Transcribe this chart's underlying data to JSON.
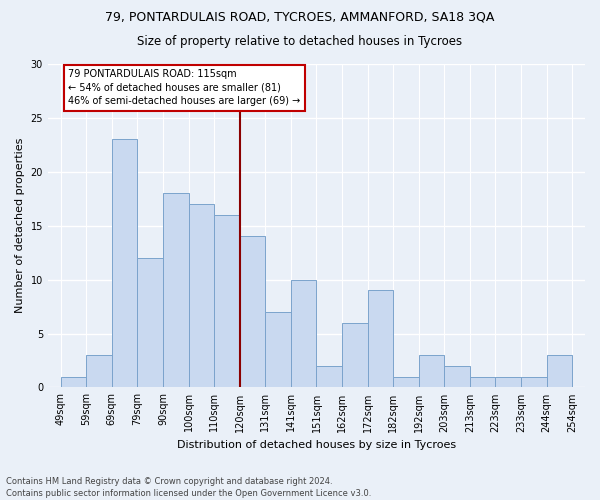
{
  "title1": "79, PONTARDULAIS ROAD, TYCROES, AMMANFORD, SA18 3QA",
  "title2": "Size of property relative to detached houses in Tycroes",
  "xlabel": "Distribution of detached houses by size in Tycroes",
  "ylabel": "Number of detached properties",
  "footnote": "Contains HM Land Registry data © Crown copyright and database right 2024.\nContains public sector information licensed under the Open Government Licence v3.0.",
  "bar_labels": [
    "49sqm",
    "59sqm",
    "69sqm",
    "79sqm",
    "90sqm",
    "100sqm",
    "110sqm",
    "120sqm",
    "131sqm",
    "141sqm",
    "151sqm",
    "162sqm",
    "172sqm",
    "182sqm",
    "192sqm",
    "203sqm",
    "213sqm",
    "223sqm",
    "233sqm",
    "244sqm",
    "254sqm"
  ],
  "bar_values": [
    1,
    3,
    23,
    12,
    18,
    17,
    16,
    14,
    7,
    10,
    2,
    6,
    9,
    1,
    3,
    2,
    1,
    1,
    1,
    3
  ],
  "bar_color": "#c9d9f0",
  "bar_edge_color": "#7ba3cc",
  "vline_x": 7.0,
  "vline_color": "#8b0000",
  "annotation_text": "79 PONTARDULAIS ROAD: 115sqm\n← 54% of detached houses are smaller (81)\n46% of semi-detached houses are larger (69) →",
  "annotation_box_color": "#ffffff",
  "annotation_box_edge": "#c00000",
  "ylim": [
    0,
    30
  ],
  "yticks": [
    0,
    5,
    10,
    15,
    20,
    25,
    30
  ],
  "bg_color": "#eaf0f8",
  "plot_bg_color": "#eaf0f8",
  "grid_color": "#ffffff",
  "title_fontsize": 9,
  "subtitle_fontsize": 8.5,
  "axis_label_fontsize": 8,
  "tick_fontsize": 7,
  "footnote_fontsize": 6,
  "ylabel_fontsize": 8
}
